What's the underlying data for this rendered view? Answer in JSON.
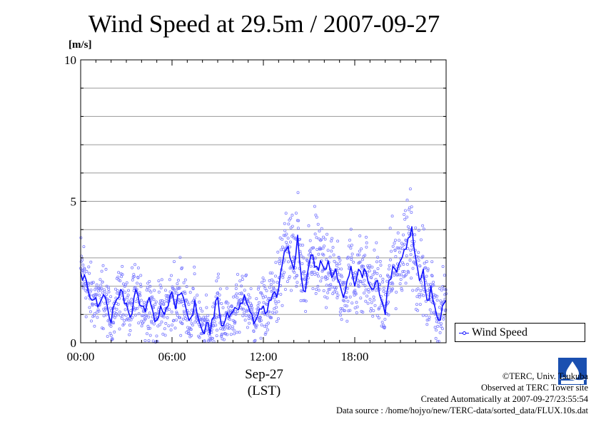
{
  "title": "Wind Speed at 29.5m / 2007-09-27",
  "legend": {
    "label": "Wind Speed"
  },
  "credits": {
    "copyright": "©TERC, Univ. Tsukuba",
    "observed": "Observed at TERC Tower site",
    "created": "Created Automatically at 2007-09-27/23:55:54",
    "source": "Data source : /home/hojyo/new/TERC-data/sorted_data/FLUX.10s.dat"
  },
  "colors": {
    "series": "#1010ff",
    "points": "#7f7fff",
    "grid": "#9a9a9a"
  },
  "chart_data": {
    "type": "line",
    "title": "Wind Speed at 29.5m / 2007-09-27",
    "ylabel": "[m/s]",
    "xlabel": "Sep-27",
    "xlabel2": "(LST)",
    "ylim": [
      0,
      10
    ],
    "xlim_hours": [
      0,
      24
    ],
    "y_ticks": [
      "0",
      "5",
      "10"
    ],
    "x_ticks": [
      {
        "hour": 0,
        "label": "00:00"
      },
      {
        "hour": 6,
        "label": "06:00"
      },
      {
        "hour": 12,
        "label": "12:00"
      },
      {
        "hour": 18,
        "label": "18:00"
      }
    ],
    "grid": "horizontal, every 1 m/s",
    "legend_position": "right-bottom",
    "series": [
      {
        "name": "Wind Speed",
        "hour": [
          0.0,
          0.25,
          0.5,
          0.75,
          1.0,
          1.25,
          1.5,
          1.75,
          2.0,
          2.25,
          2.5,
          2.75,
          3.0,
          3.25,
          3.5,
          3.75,
          4.0,
          4.25,
          4.5,
          4.75,
          5.0,
          5.25,
          5.5,
          5.75,
          6.0,
          6.25,
          6.5,
          6.75,
          7.0,
          7.25,
          7.5,
          7.75,
          8.0,
          8.25,
          8.5,
          8.75,
          9.0,
          9.25,
          9.5,
          9.75,
          10.0,
          10.25,
          10.5,
          10.75,
          11.0,
          11.25,
          11.5,
          11.75,
          12.0,
          12.25,
          12.5,
          12.75,
          13.0,
          13.25,
          13.5,
          13.75,
          14.0,
          14.25,
          14.5,
          14.75,
          15.0,
          15.25,
          15.5,
          15.75,
          16.0,
          16.25,
          16.5,
          16.75,
          17.0,
          17.25,
          17.5,
          17.75,
          18.0,
          18.25,
          18.5,
          18.75,
          19.0,
          19.25,
          19.5,
          19.75,
          20.0,
          20.25,
          20.5,
          20.75,
          21.0,
          21.25,
          21.5,
          21.75,
          22.0,
          22.25,
          22.5,
          22.75,
          23.0,
          23.25,
          23.5,
          23.75,
          24.0
        ],
        "values": [
          2.5,
          2.4,
          1.8,
          1.5,
          1.6,
          1.4,
          1.7,
          1.3,
          0.7,
          1.4,
          1.6,
          1.8,
          1.4,
          0.9,
          1.6,
          1.7,
          1.3,
          1.1,
          1.6,
          1.1,
          0.8,
          1.3,
          1.0,
          1.3,
          1.8,
          1.2,
          1.7,
          1.6,
          1.0,
          0.9,
          1.5,
          0.8,
          0.4,
          0.7,
          0.3,
          0.9,
          1.6,
          0.6,
          0.8,
          0.9,
          1.1,
          1.2,
          1.4,
          1.7,
          1.3,
          1.0,
          0.8,
          1.2,
          1.3,
          1.1,
          1.5,
          1.8,
          1.9,
          2.8,
          3.3,
          3.0,
          2.6,
          3.8,
          2.3,
          1.8,
          2.8,
          3.1,
          2.7,
          2.9,
          2.6,
          2.9,
          2.3,
          2.6,
          2.1,
          1.6,
          2.2,
          2.7,
          2.0,
          2.6,
          2.3,
          2.5,
          2.0,
          1.9,
          2.2,
          1.5,
          1.0,
          2.2,
          2.7,
          2.5,
          2.9,
          3.3,
          3.7,
          4.1,
          3.0,
          2.2,
          2.6,
          1.5,
          2.0,
          1.3,
          0.8,
          1.3,
          1.5
        ]
      }
    ]
  }
}
